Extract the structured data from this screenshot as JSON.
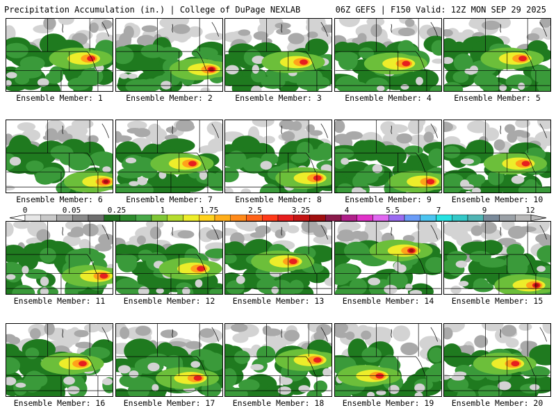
{
  "header": {
    "title": "Precipitation Accumulation (in.) | College of DuPage NEXLAB",
    "run_info": "06Z GEFS | F150 Valid: 12Z MON SEP 29 2025"
  },
  "colorbar": {
    "labels": [
      "0",
      "0.05",
      "0.25",
      "1",
      "1.75",
      "2.5",
      "3.25",
      "4",
      "5.5",
      "7",
      "9",
      "12"
    ],
    "colors": [
      "#e6e6e6",
      "#c8c8c8",
      "#a9a9a9",
      "#8a8a8a",
      "#6e6e6e",
      "#1f6e1f",
      "#2e8b2e",
      "#48a848",
      "#7fc636",
      "#b5dc2e",
      "#eded2a",
      "#ffd21e",
      "#ffae1a",
      "#ff8a1a",
      "#ff6319",
      "#ff3a19",
      "#e61e1e",
      "#c41414",
      "#a00f0f",
      "#8a1a4a",
      "#b0208a",
      "#e032c8",
      "#e068f0",
      "#9a6cf0",
      "#6a9cf7",
      "#4cc4f0",
      "#26e2e2",
      "#34c8c8",
      "#50b4b4",
      "#7a8a9a",
      "#9aa0a6",
      "#b8b8b8"
    ]
  },
  "members": [
    {
      "label": "Ensemble Member: 1"
    },
    {
      "label": "Ensemble Member: 2"
    },
    {
      "label": "Ensemble Member: 3"
    },
    {
      "label": "Ensemble Member: 4"
    },
    {
      "label": "Ensemble Member: 5"
    },
    {
      "label": "Ensemble Member: 6"
    },
    {
      "label": "Ensemble Member: 7"
    },
    {
      "label": "Ensemble Member: 8"
    },
    {
      "label": "Ensemble Member: 9"
    },
    {
      "label": "Ensemble Member: 10"
    },
    {
      "label": "Ensemble Member: 11"
    },
    {
      "label": "Ensemble Member: 12"
    },
    {
      "label": "Ensemble Member: 13"
    },
    {
      "label": "Ensemble Member: 14"
    },
    {
      "label": "Ensemble Member: 15"
    },
    {
      "label": "Ensemble Member: 16"
    },
    {
      "label": "Ensemble Member: 17"
    },
    {
      "label": "Ensemble Member: 18"
    },
    {
      "label": "Ensemble Member: 19"
    },
    {
      "label": "Ensemble Member: 20"
    }
  ],
  "map_colors": {
    "background": "#ffffff",
    "light_gray": "#d3d3d3",
    "mid_gray": "#a9a9a9",
    "dark_green": "#1f7a1f",
    "green": "#3a9a3a",
    "light_green": "#6cbf3a",
    "yellow": "#eded2a",
    "orange": "#ffa21a",
    "red": "#e61e1e",
    "dark_red": "#a00f0f",
    "border_line": "#000000"
  }
}
